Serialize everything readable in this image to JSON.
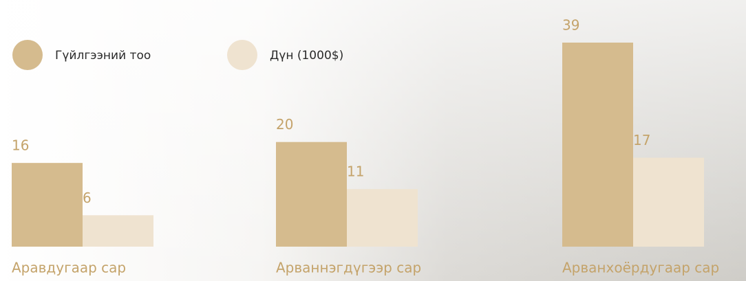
{
  "chart_data": {
    "type": "bar",
    "categories": [
      "Аравдугаар сар",
      "Арваннэгдүгээр сар",
      "Арванхоёрдугаар сар"
    ],
    "series": [
      {
        "name": "Гүйлгээний тоо",
        "color": "#d5bb8e",
        "values": [
          16,
          20,
          39
        ]
      },
      {
        "name": "Дүн (1000$)",
        "color": "#efe3d0",
        "values": [
          6,
          11,
          17
        ]
      }
    ]
  }
}
